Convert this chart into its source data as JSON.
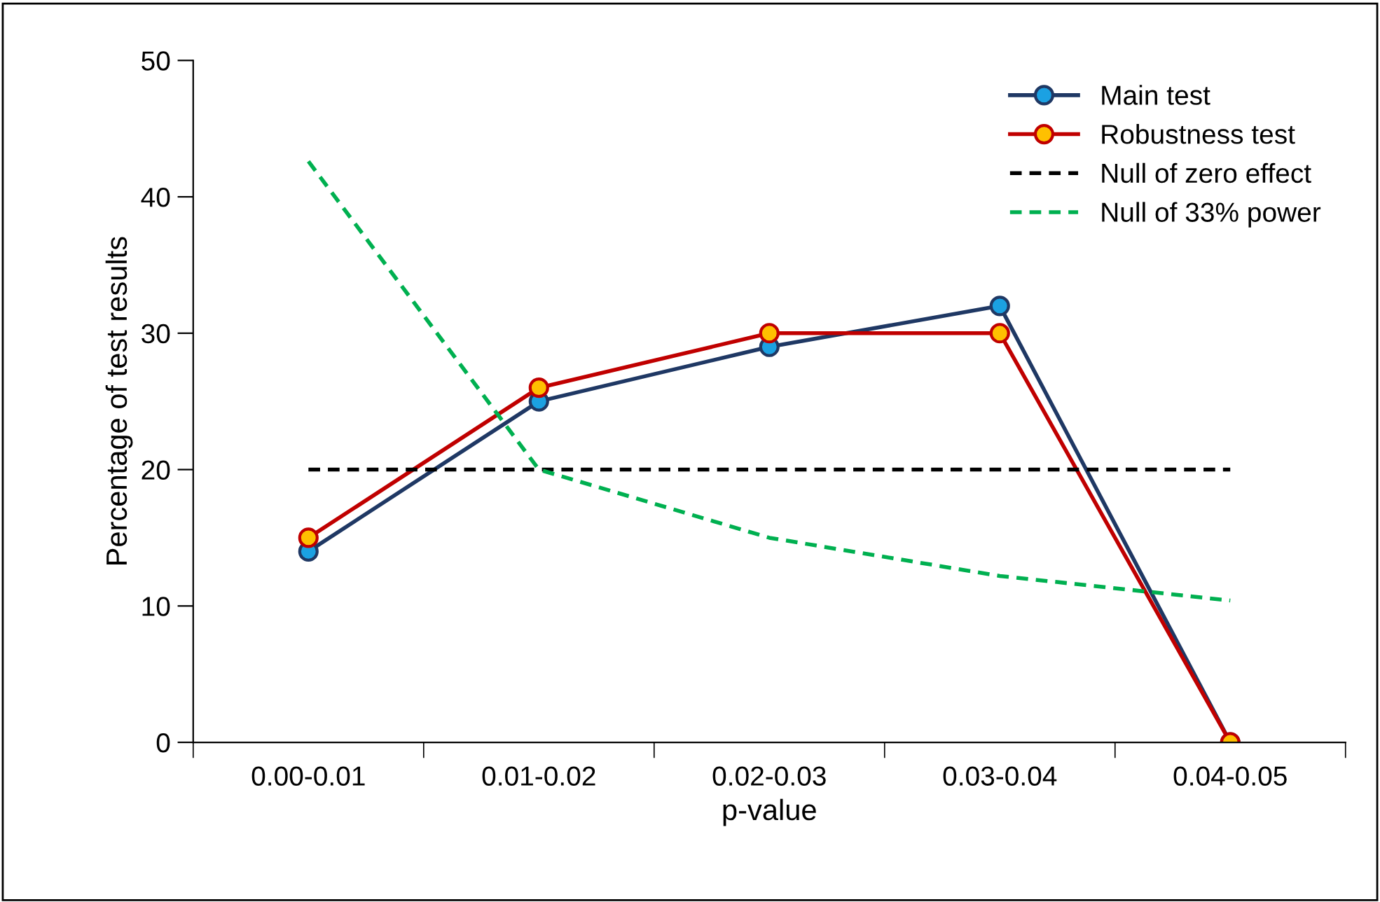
{
  "chart_data": {
    "type": "line",
    "xlabel": "p-value",
    "ylabel": "Percentage of test results",
    "categories": [
      "0.00-0.01",
      "0.01-0.02",
      "0.02-0.03",
      "0.03-0.04",
      "0.04-0.05"
    ],
    "series": [
      {
        "name": "Main test",
        "color": "#1f3864",
        "marker": "circle",
        "line_style": "solid",
        "values": [
          14,
          25,
          29,
          32,
          0
        ]
      },
      {
        "name": "Robustness test",
        "color": "#c00000",
        "marker": "circle",
        "line_style": "solid",
        "values": [
          15,
          26,
          30,
          30,
          0
        ]
      },
      {
        "name": "Null of zero effect",
        "color": "#000000",
        "marker": "none",
        "line_style": "dashed",
        "values": [
          20,
          20,
          20,
          20,
          20
        ]
      },
      {
        "name": "Null of 33% power",
        "color": "#00b050",
        "marker": "none",
        "line_style": "dashed",
        "values": [
          42.6,
          20,
          15,
          12.2,
          10.4
        ]
      }
    ],
    "ylim": [
      0,
      50
    ],
    "yticks": [
      0,
      10,
      20,
      30,
      40,
      50
    ],
    "grid": false,
    "legend": "top right"
  }
}
